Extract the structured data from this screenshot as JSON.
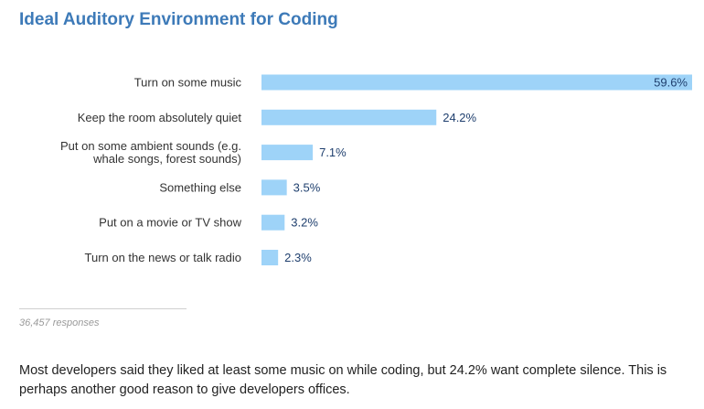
{
  "chart_data": {
    "type": "bar",
    "orientation": "horizontal",
    "title": "Ideal Auditory Environment for Coding",
    "categories": [
      [
        "Turn on some music"
      ],
      [
        "Keep the room absolutely quiet"
      ],
      [
        "Put on some ambient sounds (e.g.",
        "whale songs, forest sounds)"
      ],
      [
        "Something else"
      ],
      [
        "Put on a movie or TV show"
      ],
      [
        "Turn on the news or talk radio"
      ]
    ],
    "values": [
      59.6,
      24.2,
      7.1,
      3.5,
      3.2,
      2.3
    ],
    "value_labels": [
      "59.6%",
      "24.2%",
      "7.1%",
      "3.5%",
      "3.2%",
      "2.3%"
    ],
    "unit": "%",
    "xlim": [
      0,
      59.6
    ],
    "grid": false,
    "legend": "none",
    "bar_color": "#9ed3f8",
    "value_label_color": "#1f3f6e"
  },
  "footer": {
    "responses": "36,457 responses",
    "summary": "Most developers said they liked at least some music on while coding, but 24.2% want complete silence. This is perhaps another good reason to give developers offices."
  }
}
